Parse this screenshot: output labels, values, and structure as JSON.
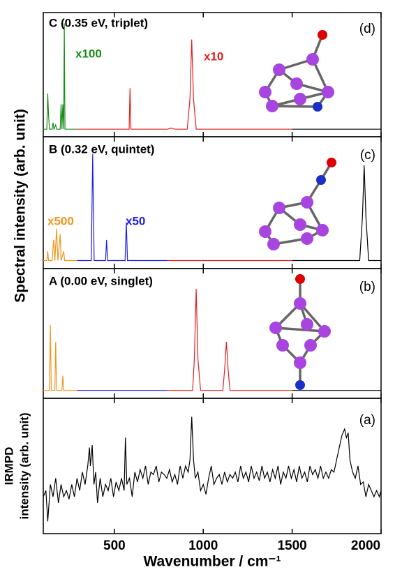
{
  "shared_ylabel": "Spectral intensity (arb. unit)",
  "chart_data": [
    {
      "type": "line",
      "title": "C (0.35 eV, triplet)",
      "panel_label": "(d)",
      "annotations": [
        {
          "text": "x100",
          "color": "#1a8c1a"
        },
        {
          "text": "x10",
          "color": "#e0201e"
        }
      ],
      "xlim": [
        100,
        2000
      ],
      "ylim": [
        -0.05,
        1.1
      ],
      "xticks": [
        500,
        1000,
        1500,
        2000
      ],
      "series": [
        {
          "color": "#1a8c1a",
          "x": [
            100,
            120,
            125,
            130,
            135,
            150,
            155,
            160,
            170,
            175,
            195,
            200,
            205,
            210,
            215,
            218,
            222,
            290
          ],
          "values": [
            0.02,
            0.02,
            0.35,
            0.15,
            0.02,
            0.02,
            0.08,
            0.02,
            0.06,
            0.02,
            0.02,
            0.25,
            0.02,
            0.25,
            0.02,
            1.0,
            0.02,
            0.02
          ]
        },
        {
          "color": "#e0201e",
          "x": [
            290,
            583,
            588,
            593,
            800,
            820,
            840,
            910,
            925,
            935,
            945,
            960,
            1500
          ],
          "values": [
            0.02,
            0.02,
            0.4,
            0.02,
            0.02,
            0.03,
            0.02,
            0.02,
            0.3,
            0.85,
            0.3,
            0.02,
            0.02
          ]
        },
        {
          "color": "#000000",
          "x": [
            1500,
            2000
          ],
          "values": [
            0.02,
            0.02
          ]
        }
      ]
    },
    {
      "type": "line",
      "title": "B (0.32 eV, quintet)",
      "panel_label": "(c)",
      "annotations": [
        {
          "text": "x500",
          "color": "#f0961e"
        },
        {
          "text": "x50",
          "color": "#1e1ee0"
        }
      ],
      "xlim": [
        100,
        2000
      ],
      "ylim": [
        -0.05,
        1.1
      ],
      "xticks": [
        500,
        1000,
        1500,
        2000
      ],
      "series": [
        {
          "color": "#f0961e",
          "x": [
            100,
            120,
            125,
            130,
            150,
            158,
            165,
            175,
            182,
            195,
            200,
            215,
            220,
            290
          ],
          "values": [
            0.02,
            0.02,
            0.1,
            0.02,
            0.02,
            0.2,
            0.02,
            0.3,
            0.02,
            0.25,
            0.02,
            0.1,
            0.02,
            0.02
          ]
        },
        {
          "color": "#1e1ee0",
          "x": [
            290,
            370,
            378,
            386,
            450,
            456,
            462,
            560,
            567,
            574,
            800
          ],
          "values": [
            0.02,
            0.02,
            0.95,
            0.02,
            0.02,
            0.2,
            0.02,
            0.02,
            0.35,
            0.02,
            0.02
          ]
        },
        {
          "color": "#e0201e",
          "x": [
            800,
            1500
          ],
          "values": [
            0.02,
            0.02
          ]
        },
        {
          "color": "#000000",
          "x": [
            1500,
            1880,
            1895,
            1905,
            1915,
            1930,
            2000
          ],
          "values": [
            0.02,
            0.02,
            0.4,
            0.85,
            0.4,
            0.02,
            0.02
          ]
        }
      ]
    },
    {
      "type": "line",
      "title": "A (0.00 eV, singlet)",
      "panel_label": "(b)",
      "annotations": [],
      "xlim": [
        100,
        2000
      ],
      "ylim": [
        -0.05,
        1.1
      ],
      "xticks": [
        500,
        1000,
        1500,
        2000
      ],
      "series": [
        {
          "color": "#f0961e",
          "x": [
            100,
            135,
            140,
            145,
            165,
            170,
            175,
            205,
            210,
            215,
            290
          ],
          "values": [
            0.02,
            0.02,
            0.6,
            0.02,
            0.02,
            0.45,
            0.02,
            0.02,
            0.15,
            0.02,
            0.02
          ]
        },
        {
          "color": "#1e1ee0",
          "x": [
            290,
            800
          ],
          "values": [
            0.02,
            0.02
          ]
        },
        {
          "color": "#e0201e",
          "x": [
            800,
            940,
            950,
            960,
            970,
            985,
            1110,
            1120,
            1130,
            1140,
            1150,
            1500
          ],
          "values": [
            0.02,
            0.02,
            0.3,
            0.92,
            0.3,
            0.02,
            0.02,
            0.2,
            0.45,
            0.2,
            0.02,
            0.02
          ]
        },
        {
          "color": "#000000",
          "x": [
            1500,
            2000
          ],
          "values": [
            0.02,
            0.02
          ]
        }
      ]
    },
    {
      "type": "line",
      "panel_label": "(a)",
      "annotations": [],
      "xlabel": "Wavenumber / cm⁻¹",
      "ylabel": [
        "IRMPD",
        "intensity (arb. unit)"
      ],
      "xlim": [
        100,
        2000
      ],
      "ylim": [
        0,
        1.1
      ],
      "xticks": [
        500,
        1000,
        1500,
        2000
      ],
      "series": [
        {
          "color": "#000000",
          "x": [
            100,
            115,
            125,
            140,
            155,
            170,
            185,
            200,
            215,
            230,
            245,
            260,
            275,
            290,
            305,
            320,
            335,
            350,
            360,
            365,
            375,
            385,
            395,
            405,
            420,
            435,
            450,
            465,
            480,
            495,
            510,
            525,
            540,
            555,
            562,
            570,
            585,
            600,
            615,
            630,
            645,
            660,
            675,
            690,
            705,
            720,
            735,
            750,
            765,
            780,
            795,
            810,
            825,
            840,
            855,
            870,
            885,
            900,
            915,
            925,
            935,
            945,
            955,
            970,
            985,
            1000,
            1015,
            1030,
            1045,
            1060,
            1075,
            1090,
            1105,
            1120,
            1135,
            1150,
            1165,
            1180,
            1195,
            1210,
            1225,
            1240,
            1255,
            1270,
            1285,
            1300,
            1315,
            1330,
            1345,
            1360,
            1375,
            1390,
            1405,
            1420,
            1435,
            1450,
            1465,
            1480,
            1495,
            1510,
            1525,
            1540,
            1555,
            1570,
            1585,
            1600,
            1615,
            1630,
            1645,
            1660,
            1675,
            1690,
            1705,
            1720,
            1735,
            1750,
            1765,
            1780,
            1795,
            1805,
            1815,
            1825,
            1840,
            1855,
            1870,
            1885,
            1900,
            1915,
            1930,
            1945,
            1960,
            1975,
            1990,
            2000
          ],
          "values": [
            0.3,
            0.35,
            0.1,
            0.4,
            0.3,
            0.45,
            0.25,
            0.4,
            0.3,
            0.35,
            0.28,
            0.4,
            0.3,
            0.45,
            0.35,
            0.5,
            0.4,
            0.55,
            0.7,
            0.55,
            0.72,
            0.4,
            0.5,
            0.25,
            0.45,
            0.3,
            0.4,
            0.35,
            0.45,
            0.3,
            0.42,
            0.35,
            0.45,
            0.35,
            0.78,
            0.4,
            0.45,
            0.3,
            0.5,
            0.42,
            0.52,
            0.45,
            0.55,
            0.4,
            0.5,
            0.48,
            0.55,
            0.42,
            0.5,
            0.48,
            0.45,
            0.52,
            0.42,
            0.48,
            0.4,
            0.55,
            0.45,
            0.55,
            0.5,
            0.6,
            0.95,
            0.6,
            0.45,
            0.5,
            0.35,
            0.4,
            0.32,
            0.45,
            0.55,
            0.4,
            0.45,
            0.48,
            0.4,
            0.5,
            0.42,
            0.48,
            0.45,
            0.5,
            0.42,
            0.55,
            0.45,
            0.5,
            0.42,
            0.55,
            0.45,
            0.5,
            0.43,
            0.55,
            0.45,
            0.5,
            0.42,
            0.52,
            0.45,
            0.55,
            0.4,
            0.5,
            0.45,
            0.55,
            0.45,
            0.52,
            0.42,
            0.55,
            0.45,
            0.5,
            0.42,
            0.55,
            0.48,
            0.52,
            0.45,
            0.55,
            0.45,
            0.5,
            0.45,
            0.52,
            0.5,
            0.6,
            0.7,
            0.8,
            0.85,
            0.78,
            0.82,
            0.6,
            0.5,
            0.45,
            0.55,
            0.4,
            0.42,
            0.3,
            0.4,
            0.35,
            0.3,
            0.35,
            0.3,
            0.35
          ]
        }
      ]
    }
  ]
}
